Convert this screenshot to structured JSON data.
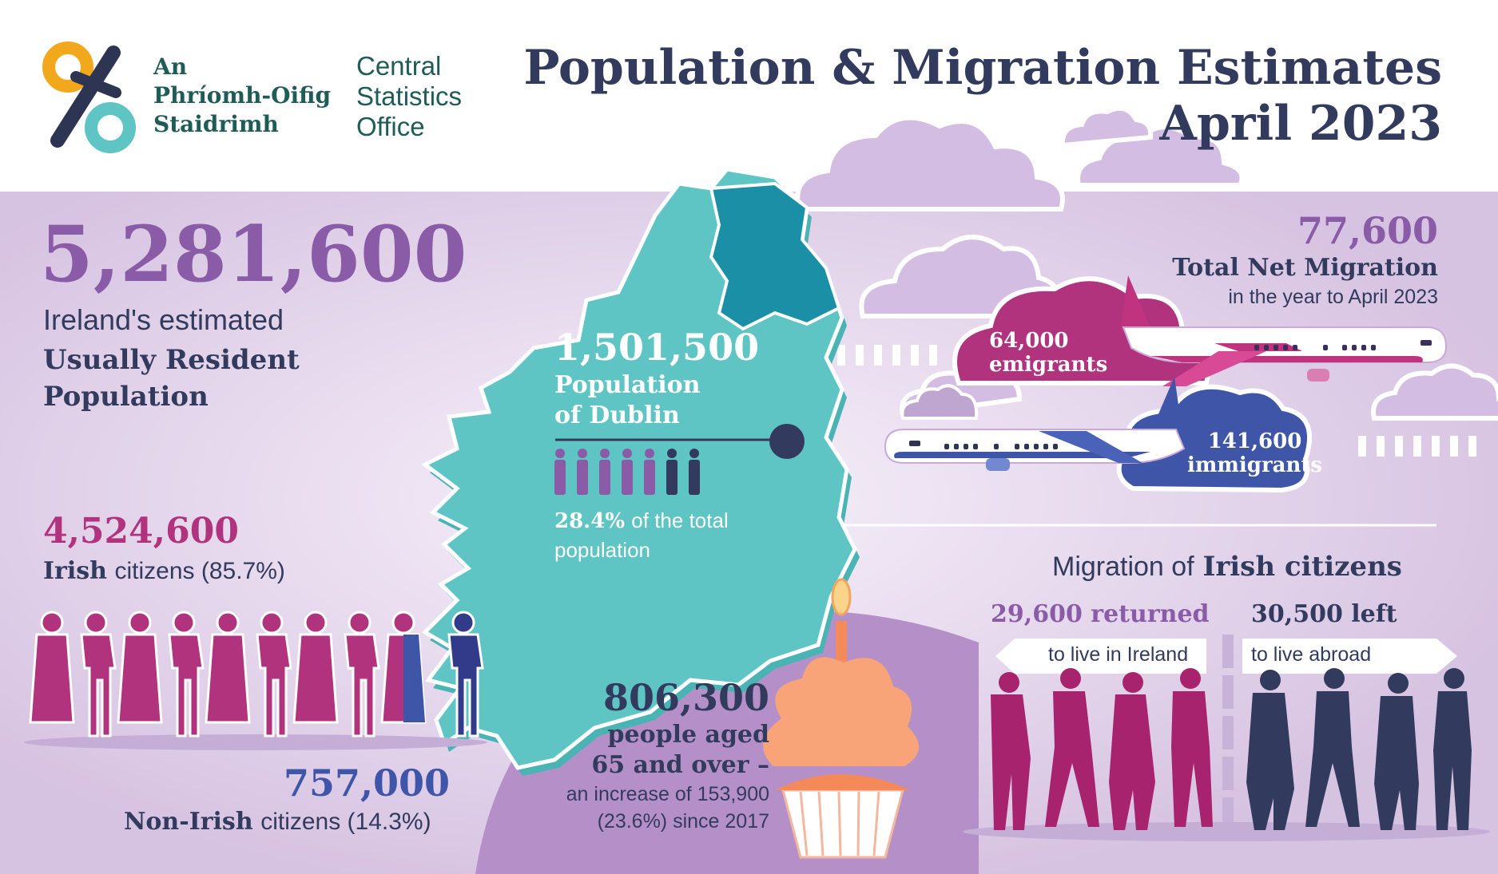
{
  "header": {
    "logo_irish_line1": "An",
    "logo_irish_line2": "Phríomh-Oifig",
    "logo_irish_line3": "Staidrimh",
    "logo_english_line1": "Central",
    "logo_english_line2": "Statistics",
    "logo_english_line3": "Office",
    "title_line1": "Population & Migration Estimates",
    "title_line2": "April 2023"
  },
  "population": {
    "total": "5,281,600",
    "label_line1": "Ireland's estimated",
    "label_line2": "Usually Resident",
    "label_line3": "Population"
  },
  "citizens": {
    "irish_count": "4,524,600",
    "irish_label": "Irish",
    "irish_suffix": "citizens (85.7%)",
    "non_irish_count": "757,000",
    "non_irish_label": "Non-Irish",
    "non_irish_suffix": "citizens (14.3%)"
  },
  "dublin": {
    "count": "1,501,500",
    "label_line1": "Population",
    "label_line2": "of Dublin",
    "share": "28.4%",
    "share_suffix": "of the total",
    "share_line2": "population"
  },
  "migration": {
    "net": "77,600",
    "net_label": "Total Net Migration",
    "net_period": "in the year to April 2023",
    "emigrants_count": "64,000",
    "emigrants_label": "emigrants",
    "immigrants_count": "141,600",
    "immigrants_label": "immigrants"
  },
  "aged": {
    "count": "806,300",
    "label_line1": "people aged",
    "label_line2": "65 and over –",
    "increase_line1": "an increase of 153,900",
    "increase_line2": "(23.6%) since 2017"
  },
  "irish_migration": {
    "heading_prefix": "Migration of",
    "heading_bold": "Irish citizens",
    "returned_count": "29,600",
    "returned_word": "returned",
    "returned_sub": "to live in Ireland",
    "left_count": "30,500",
    "left_word": "left",
    "left_sub": "to live abroad"
  },
  "colors": {
    "navy": "#323b5e",
    "purple": "#8a5ca8",
    "magenta": "#b1337d",
    "teal": "#5ec4c4",
    "blue": "#3f55a8",
    "lavender": "#d9c5e1"
  }
}
